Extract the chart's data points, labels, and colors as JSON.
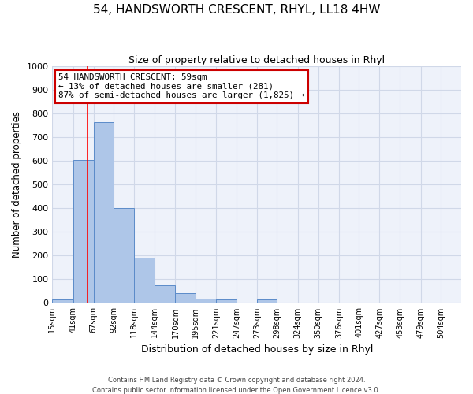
{
  "title": "54, HANDSWORTH CRESCENT, RHYL, LL18 4HW",
  "subtitle": "Size of property relative to detached houses in Rhyl",
  "xlabel": "Distribution of detached houses by size in Rhyl",
  "ylabel": "Number of detached properties",
  "bar_edges": [
    15,
    41,
    67,
    92,
    118,
    144,
    170,
    195,
    221,
    247,
    273,
    298,
    324,
    350,
    376,
    401,
    427,
    453,
    479,
    504,
    530
  ],
  "bar_heights": [
    15,
    605,
    765,
    400,
    190,
    75,
    40,
    18,
    15,
    0,
    15,
    0,
    0,
    0,
    0,
    0,
    0,
    0,
    0,
    0
  ],
  "bar_color": "#aec6e8",
  "bar_edge_color": "#5b8bc9",
  "bar_linewidth": 0.7,
  "red_line_x": 59,
  "ylim": [
    0,
    1000
  ],
  "yticks": [
    0,
    100,
    200,
    300,
    400,
    500,
    600,
    700,
    800,
    900,
    1000
  ],
  "annotation_line1": "54 HANDSWORTH CRESCENT: 59sqm",
  "annotation_line2": "← 13% of detached houses are smaller (281)",
  "annotation_line3": "87% of semi-detached houses are larger (1,825) →",
  "annotation_box_color": "#ffffff",
  "annotation_box_edge": "#cc0000",
  "grid_color": "#d0d8e8",
  "background_color": "#eef2fa",
  "footer1": "Contains HM Land Registry data © Crown copyright and database right 2024.",
  "footer2": "Contains public sector information licensed under the Open Government Licence v3.0."
}
